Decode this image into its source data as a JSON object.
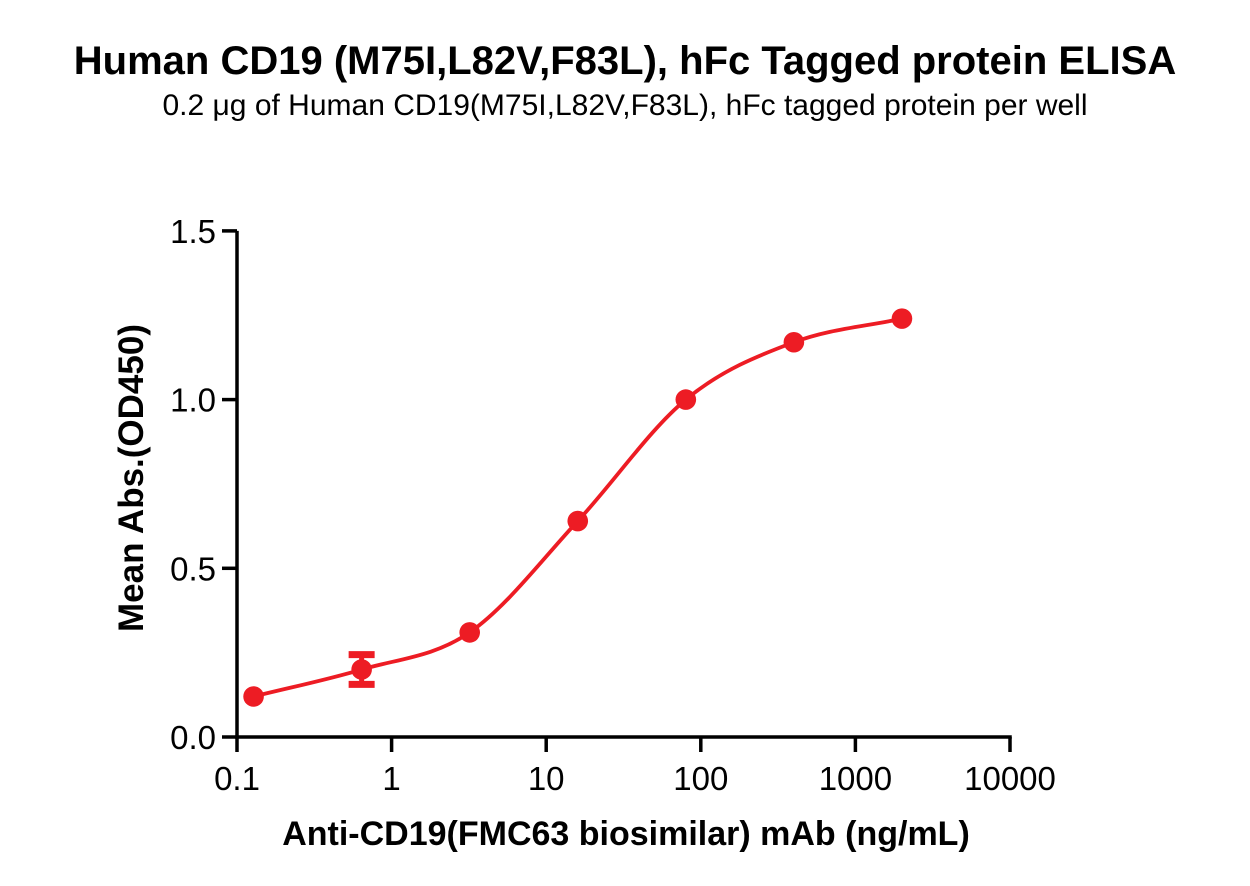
{
  "figure": {
    "title": "Human CD19 (M75I,L82V,F83L), hFc Tagged protein ELISA",
    "subtitle": "0.2 μg of Human CD19(M75I,L82V,F83L), hFc tagged protein per well"
  },
  "chart_data": {
    "type": "scatter",
    "subtype": "dose-response-sigmoid",
    "x_scale": "log10",
    "xlabel": "Anti-CD19(FMC63 biosimilar) mAb (ng/mL)",
    "ylabel": "Mean Abs.(OD450)",
    "xlim": [
      0.1,
      10000
    ],
    "ylim": [
      0.0,
      1.5
    ],
    "x_ticks": [
      0.1,
      1,
      10,
      100,
      1000,
      10000
    ],
    "x_tick_labels": [
      "0.1",
      "1",
      "10",
      "100",
      "1000",
      "10000"
    ],
    "y_ticks": [
      0.0,
      0.5,
      1.0,
      1.5
    ],
    "y_tick_labels": [
      "0.0",
      "0.5",
      "1.0",
      "1.5"
    ],
    "grid": false,
    "legend": "none",
    "series": [
      {
        "name": "Anti-CD19(FMC63 biosimilar) mAb",
        "color": "#ED1C24",
        "marker": "circle",
        "marker_radius_px": 10.3,
        "curve": "smooth-sigmoid-through-points",
        "points": [
          {
            "x": 0.128,
            "y": 0.12,
            "err": 0
          },
          {
            "x": 0.64,
            "y": 0.2,
            "err": 0.044
          },
          {
            "x": 3.2,
            "y": 0.31,
            "err": 0
          },
          {
            "x": 16,
            "y": 0.64,
            "err": 0
          },
          {
            "x": 80,
            "y": 1.0,
            "err": 0
          },
          {
            "x": 400,
            "y": 1.17,
            "err": 0
          },
          {
            "x": 2000,
            "y": 1.24,
            "err": 0
          }
        ]
      }
    ],
    "axis_color": "#000000"
  }
}
